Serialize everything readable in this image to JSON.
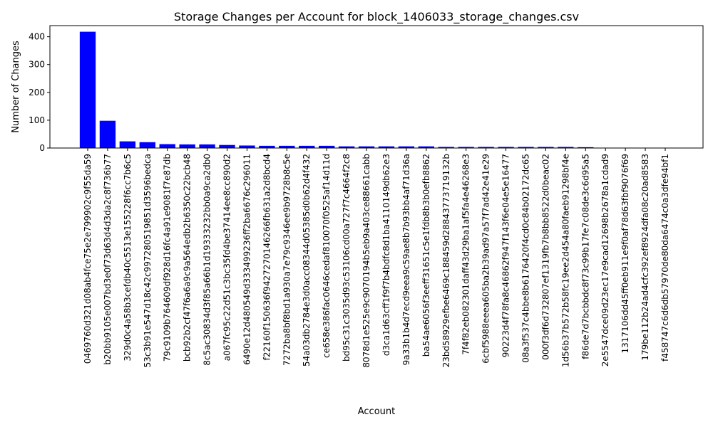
{
  "chart_data": {
    "type": "bar",
    "title": "Storage Changes per Account for block_1406033_storage_changes.csv",
    "xlabel": "Account",
    "ylabel": "Number of Changes",
    "ylim": [
      0,
      440
    ],
    "yticks": [
      0,
      100,
      200,
      300,
      400
    ],
    "grid": false,
    "bar_color": "#0000ff",
    "categories": [
      "0469760d321d08ab4fce75e2e799902c9f55da59",
      "b20bb9105e007bd3e0f73d63d4d3da2c8f736b77",
      "329d0c4a58b3cefdb40c5513e155228f6cc7b6c5",
      "53c3b91e547d18c42c997280519851d3596bedca",
      "79c9109b764609df928d16fc4a91e9081f7e87db",
      "bcb92b2cf47f6a6a9c9a564edb2b6350c22bcb48",
      "8c5ac30834d3f85a66b1d19333232bb0a9ca2db0",
      "a067fc95c22d51c3bc35fd4be37414ee8cc890d2",
      "6490e12d480549d333499236ff2ba6676c296011",
      "f22160f150636f9427270146266fb631a2d8bcd4",
      "7272ba8bf8bd1a930a7e79c9346ee9b9728b8c5e",
      "54a03db2784e3d0acc08344d05385d0b62d4f432",
      "ce658e386fac0646cedaf810070f0525af14d11d",
      "bd95c31c3035d93c53106cd00a727f7c4664f2c8",
      "8078d1e525e9c9070194b5eb9a403ce88661cabb",
      "d3ca1d63cff1f9f7b4bdfc8d1ba4110149db62e3",
      "9a33b1b4d7ecd9eea9c59ae8b7b93bb4af71d36a",
      "ba54ae6056f3eeff31651c5e1fdb8b3b0efb8862",
      "23bd58929efbe6469c188459d28843773719132b",
      "7f4f82eb082301daff43d29ba1af5fa4e46268e3",
      "6cbf5988eeea605ba2b39ad97a57f7ad42e41e29",
      "90223d4f78fa8c46862f947f143f6e04e5e16477",
      "08a3f537c4bbe8b6176420f4cd0c84b02172dc65",
      "000f3df6d732807ef1319fb7b8bb8522d0beac02",
      "1d56b37b572b58fc19ee2d454a80faeb91298bf4e",
      "f86de7d7bcbbdc8f73c99b17fe7c08de3c6d95a5",
      "2e5547dce09d23ec17e9cad12698b2678a1cdad9",
      "1317106dd45ff0eb911e9f0af78d63fbf9076f69",
      "179be112b24ad4cfc392ef8924dfa08c20ad8583",
      "f458747c6d6db57970de80da6474c0a3dfe94bf1"
    ],
    "values": [
      418,
      98,
      24,
      21,
      14,
      13,
      13,
      11,
      9,
      8,
      8,
      8,
      8,
      6,
      6,
      6,
      6,
      6,
      4,
      4,
      4,
      4,
      4,
      4,
      4,
      3,
      1,
      1,
      1,
      1
    ]
  }
}
